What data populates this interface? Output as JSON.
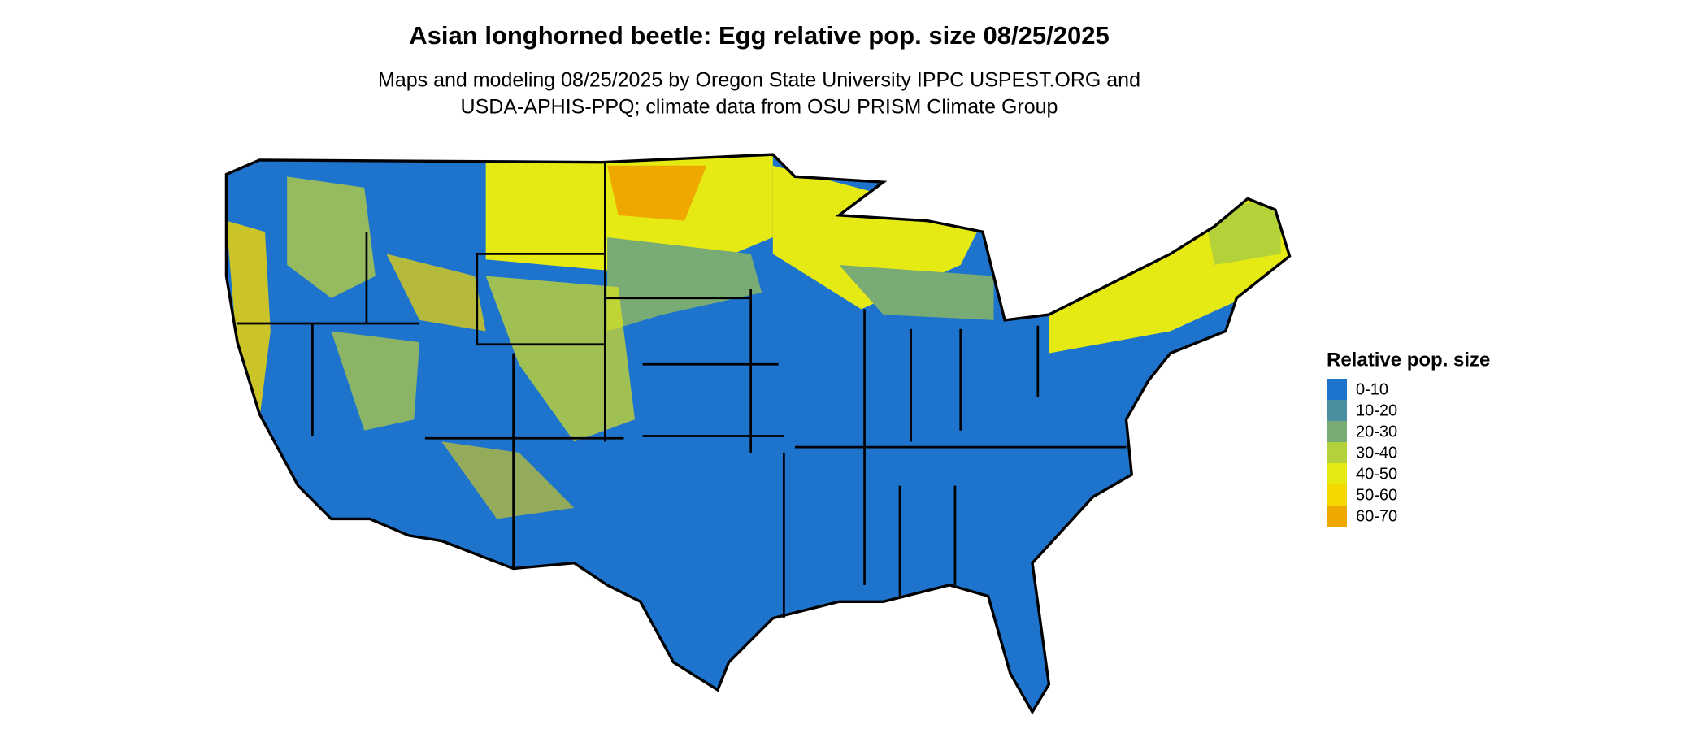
{
  "title": "Asian longhorned beetle: Egg relative pop. size 08/25/2025",
  "subtitle": [
    "Maps and modeling 08/25/2025 by Oregon State University IPPC USPEST.ORG and",
    "USDA-APHIS-PPQ; climate data from OSU PRISM Climate Group"
  ],
  "legend": {
    "title": "Relative pop. size",
    "items": [
      {
        "label": "0-10",
        "color": "#1e74cc"
      },
      {
        "label": "10-20",
        "color": "#4a8fa0"
      },
      {
        "label": "20-30",
        "color": "#79ab74"
      },
      {
        "label": "30-40",
        "color": "#b3d23a"
      },
      {
        "label": "40-50",
        "color": "#e6ea14"
      },
      {
        "label": "50-60",
        "color": "#f5d800"
      },
      {
        "label": "60-70",
        "color": "#eea800"
      }
    ]
  }
}
